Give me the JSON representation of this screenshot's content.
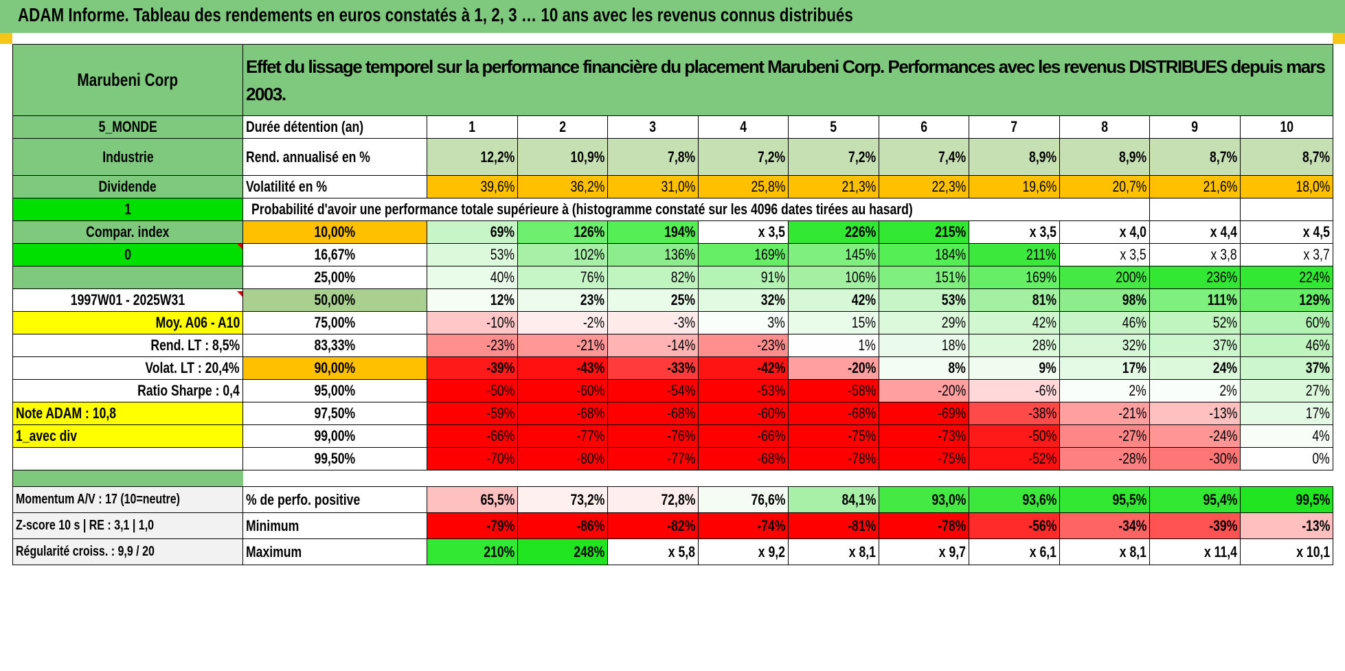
{
  "title": "ADAM Informe. Tableau des rendements en euros constatés à 1, 2, 3 … 10 ans avec les revenus connus distribués",
  "left_labels": {
    "company": "Marubeni Corp",
    "zone": "5_MONDE",
    "sector": "Industrie",
    "type": "Dividende",
    "flag1": "1",
    "compar": "Compar. index",
    "flag0": "0",
    "period": "1997W01 - 2025W31",
    "moy": "Moy. A06 - A10",
    "rend_lt": "Rend. LT :    8,5%",
    "volat_lt": "Volat. LT :    20,4%",
    "sharpe": "Ratio Sharpe :    0,4",
    "note": "Note ADAM : 10,8",
    "avec_div": "1_avec div",
    "momentum": "Momentum A/V : 17 (10=neutre)",
    "zscore": "Z-score 10 s | RE : 3,1 | 1,0",
    "regularite": "Régularité croiss. : 9,9 / 20"
  },
  "header_desc": "Effet du lissage temporel sur la performance financière du placement Marubeni Corp. Performances avec les revenus DISTRIBUES depuis mars 2003.",
  "years_label": "Durée détention (an)",
  "years": [
    "1",
    "2",
    "3",
    "4",
    "5",
    "6",
    "7",
    "8",
    "9",
    "10"
  ],
  "rend_label": "Rend. annualisé en %",
  "rend": [
    "12,2%",
    "10,9%",
    "7,8%",
    "7,2%",
    "7,2%",
    "7,4%",
    "8,9%",
    "8,9%",
    "8,7%",
    "8,7%"
  ],
  "vol_label": "Volatilité en %",
  "vol": [
    "39,6%",
    "36,2%",
    "31,0%",
    "25,8%",
    "21,3%",
    "22,3%",
    "19,6%",
    "20,7%",
    "21,6%",
    "18,0%"
  ],
  "prob_title": "Probabilité d'avoir une performance totale supérieure à (histogramme constaté sur les 4096 dates tirées au hasard)",
  "prob_rows": [
    {
      "p": "10,00%",
      "v": [
        "69%",
        "126%",
        "194%",
        "x 3,5",
        "226%",
        "215%",
        "x 3,5",
        "x 4,0",
        "x 4,4",
        "x 4,5"
      ]
    },
    {
      "p": "16,67%",
      "v": [
        "53%",
        "102%",
        "136%",
        "169%",
        "145%",
        "184%",
        "211%",
        "x 3,5",
        "x 3,8",
        "x 3,7"
      ]
    },
    {
      "p": "25,00%",
      "v": [
        "40%",
        "76%",
        "82%",
        "91%",
        "106%",
        "151%",
        "169%",
        "200%",
        "236%",
        "224%"
      ]
    },
    {
      "p": "50,00%",
      "v": [
        "12%",
        "23%",
        "25%",
        "32%",
        "42%",
        "53%",
        "81%",
        "98%",
        "111%",
        "129%"
      ]
    },
    {
      "p": "75,00%",
      "v": [
        "-10%",
        "-2%",
        "-3%",
        "3%",
        "15%",
        "29%",
        "42%",
        "46%",
        "52%",
        "60%"
      ]
    },
    {
      "p": "83,33%",
      "v": [
        "-23%",
        "-21%",
        "-14%",
        "-23%",
        "1%",
        "18%",
        "28%",
        "32%",
        "37%",
        "46%"
      ]
    },
    {
      "p": "90,00%",
      "v": [
        "-39%",
        "-43%",
        "-33%",
        "-42%",
        "-20%",
        "8%",
        "9%",
        "17%",
        "24%",
        "37%"
      ]
    },
    {
      "p": "95,00%",
      "v": [
        "-50%",
        "-60%",
        "-54%",
        "-53%",
        "-58%",
        "-20%",
        "-6%",
        "2%",
        "2%",
        "27%"
      ]
    },
    {
      "p": "97,50%",
      "v": [
        "-59%",
        "-68%",
        "-68%",
        "-60%",
        "-68%",
        "-69%",
        "-38%",
        "-21%",
        "-13%",
        "17%"
      ]
    },
    {
      "p": "99,00%",
      "v": [
        "-66%",
        "-77%",
        "-76%",
        "-66%",
        "-75%",
        "-73%",
        "-50%",
        "-27%",
        "-24%",
        "4%"
      ]
    },
    {
      "p": "99,50%",
      "v": [
        "-70%",
        "-80%",
        "-77%",
        "-68%",
        "-78%",
        "-75%",
        "-52%",
        "-28%",
        "-30%",
        "0%"
      ]
    }
  ],
  "pos_label": "% de perfo. positive",
  "pos": [
    "65,5%",
    "73,2%",
    "72,8%",
    "76,6%",
    "84,1%",
    "93,0%",
    "93,6%",
    "95,5%",
    "95,4%",
    "99,5%"
  ],
  "min_label": "Minimum",
  "min": [
    "-79%",
    "-86%",
    "-82%",
    "-74%",
    "-81%",
    "-78%",
    "-56%",
    "-34%",
    "-39%",
    "-13%"
  ],
  "max_label": "Maximum",
  "max": [
    "210%",
    "248%",
    "x 5,8",
    "x 9,2",
    "x 8,1",
    "x 9,7",
    "x 6,1",
    "x 8,1",
    "x 11,4",
    "x 10,1"
  ],
  "colors": {
    "header_green": "#7fc97f",
    "bright_green": "#00e000",
    "yellow": "#ffff00",
    "orange": "#ffc000",
    "red": "#ff0000",
    "label_red": "#e00000"
  },
  "cell_colors": {
    "rend": [
      "#c6e0b4",
      "#c6e0b4",
      "#c6e0b4",
      "#c6e0b4",
      "#c6e0b4",
      "#c6e0b4",
      "#c6e0b4",
      "#c6e0b4",
      "#c6e0b4",
      "#c6e0b4"
    ],
    "vol": [
      "#ffc000",
      "#ffc000",
      "#ffc000",
      "#ffc000",
      "#ffc000",
      "#ffc000",
      "#ffc000",
      "#ffc000",
      "#ffc000",
      "#ffc000"
    ],
    "prob": [
      [
        "#c8f5c8",
        "#6ef06e",
        "#55ee55",
        "#ffffff",
        "#33e833",
        "#33e833",
        "#ffffff",
        "#ffffff",
        "#ffffff",
        "#ffffff"
      ],
      [
        "#dcf9dc",
        "#a8f0a8",
        "#8ded8d",
        "#66ee66",
        "#7ff07f",
        "#55ee55",
        "#3de83d",
        "#ffffff",
        "#ffffff",
        "#ffffff"
      ],
      [
        "#e9fbe9",
        "#c6f5c6",
        "#c0f5c0",
        "#b3f3b3",
        "#a3f0a3",
        "#7ff07f",
        "#66ee66",
        "#44e944",
        "#33e833",
        "#33e833"
      ],
      [
        "#f5fdf5",
        "#ecfbec",
        "#e9fbe9",
        "#e2fae2",
        "#d6f8d6",
        "#c8f5c8",
        "#a3f0a3",
        "#8ded8d",
        "#7ff07f",
        "#66ee66"
      ],
      [
        "#ffc7c7",
        "#ffecec",
        "#ffeaea",
        "#fafefa",
        "#e9fbe9",
        "#dcf9dc",
        "#d0f7d0",
        "#c8f5c8",
        "#c0f5c0",
        "#b3f3b3"
      ],
      [
        "#ff8f8f",
        "#ff9797",
        "#ffb3b3",
        "#ff8f8f",
        "#fdfefd",
        "#ebfbeb",
        "#dcf9dc",
        "#d6f8d6",
        "#ccf6cc",
        "#c0f5c0"
      ],
      [
        "#ff1a1a",
        "#ff1111",
        "#ff3b3b",
        "#ff1414",
        "#ff9f9f",
        "#f3fdf3",
        "#f1fcf1",
        "#e5fae5",
        "#dcf9dc",
        "#ccf6cc"
      ],
      [
        "#ff0000",
        "#ff0000",
        "#ff0000",
        "#ff0000",
        "#ff0000",
        "#ff9f9f",
        "#ffd9d9",
        "#fafefa",
        "#fafefa",
        "#dcf9dc"
      ],
      [
        "#ff0000",
        "#ff0000",
        "#ff0000",
        "#ff0000",
        "#ff0000",
        "#ff0000",
        "#ff4a4a",
        "#ff9f9f",
        "#ffc0c0",
        "#e5fae5"
      ],
      [
        "#ff0000",
        "#ff0000",
        "#ff0000",
        "#ff0000",
        "#ff0000",
        "#ff0000",
        "#ff1a1a",
        "#ff8686",
        "#ff9595",
        "#f8fdf8"
      ],
      [
        "#ff0000",
        "#ff0000",
        "#ff0000",
        "#ff0000",
        "#ff0000",
        "#ff0000",
        "#ff1111",
        "#ff8080",
        "#ff7676",
        "#ffffff"
      ]
    ],
    "pos": [
      "#ffc0c0",
      "#fff0f0",
      "#ffeeee",
      "#f4fcf4",
      "#a8f0a8",
      "#44e944",
      "#3de83d",
      "#33e833",
      "#33e833",
      "#22e522"
    ],
    "min": [
      "#ff0000",
      "#ff0000",
      "#ff0000",
      "#ff0000",
      "#ff0000",
      "#ff0000",
      "#ff2a2a",
      "#ff6464",
      "#ff5252",
      "#ffbfbf"
    ],
    "max": [
      "#33e833",
      "#22e522",
      "#ffffff",
      "#ffffff",
      "#ffffff",
      "#ffffff",
      "#ffffff",
      "#ffffff",
      "#ffffff",
      "#ffffff"
    ]
  }
}
